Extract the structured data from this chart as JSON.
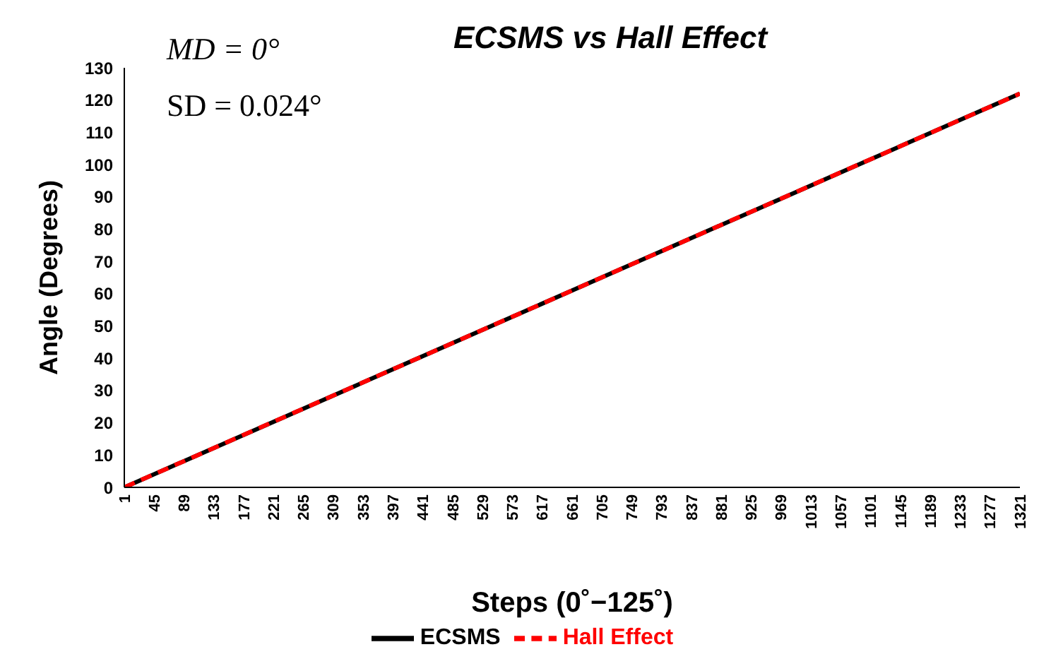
{
  "chart_data": {
    "type": "line",
    "title": "ECSMS vs Hall Effect",
    "xlabel": "Steps (0˚−125˚)",
    "ylabel": "Angle (Degrees)",
    "annotations": [
      "MD = 0°",
      "SD = 0.024°"
    ],
    "x": [
      1,
      331,
      661,
      991,
      1321
    ],
    "series": [
      {
        "name": "ECSMS",
        "color": "#000000",
        "line_style": "solid",
        "values": [
          0,
          30.5,
          61,
          91.5,
          122
        ]
      },
      {
        "name": "Hall Effect",
        "color": "#ff0000",
        "line_style": "dashed",
        "values": [
          0,
          30.5,
          61,
          91.5,
          122
        ]
      }
    ],
    "xlim": [
      1,
      1321
    ],
    "xticks": [
      1,
      45,
      89,
      133,
      177,
      221,
      265,
      309,
      353,
      397,
      441,
      485,
      529,
      573,
      617,
      661,
      705,
      749,
      793,
      837,
      881,
      925,
      969,
      1013,
      1057,
      1101,
      1145,
      1189,
      1233,
      1277,
      1321
    ],
    "ylim": [
      0,
      130
    ],
    "yticks": [
      0,
      10,
      20,
      30,
      40,
      50,
      60,
      70,
      80,
      90,
      100,
      110,
      120,
      130
    ],
    "grid": false,
    "legend": "bottom",
    "marker": "none"
  }
}
